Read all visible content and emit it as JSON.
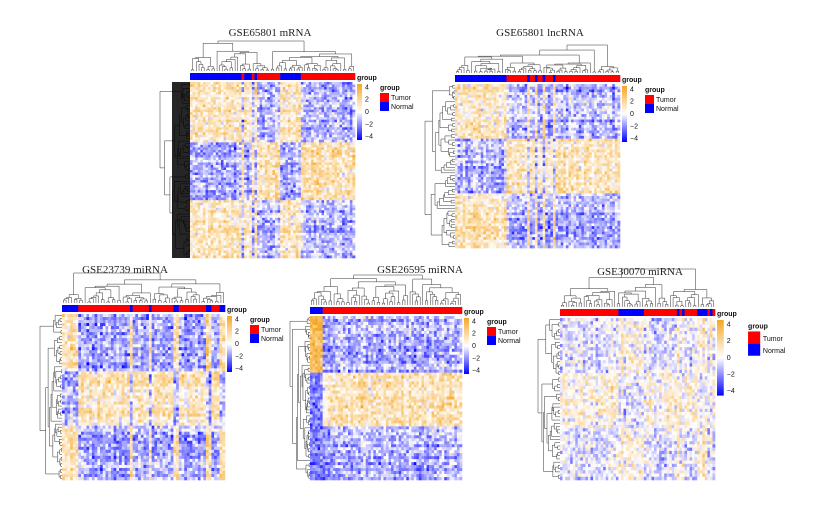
{
  "chart_data": [
    {
      "type": "heatmap",
      "title": "GSE65801 mRNA",
      "annotation_label": "group",
      "legend": {
        "title": "group",
        "entries": [
          {
            "label": "Tumor",
            "color": "#FF0000"
          },
          {
            "label": "Normal",
            "color": "#0000FF"
          }
        ]
      },
      "color_scale": {
        "ticks": [
          "4",
          "2",
          "0",
          "−2",
          "−4"
        ],
        "range": [
          -4,
          4
        ],
        "low": "#0000FF",
        "mid": "#FFFFFF",
        "high": "#F5A623"
      },
      "sample_group_runs": [
        [
          "Normal",
          20
        ],
        [
          "Tumor",
          1
        ],
        [
          "Normal",
          3
        ],
        [
          "Tumor",
          1
        ],
        [
          "Normal",
          1
        ],
        [
          "Tumor",
          9
        ],
        [
          "Normal",
          8
        ],
        [
          "Tumor",
          21
        ]
      ],
      "rows_dense": true
    },
    {
      "type": "heatmap",
      "title": "GSE65801 lncRNA",
      "annotation_label": "group",
      "legend": {
        "title": "group",
        "entries": [
          {
            "label": "Tumor",
            "color": "#FF0000"
          },
          {
            "label": "Normal",
            "color": "#0000FF"
          }
        ]
      },
      "color_scale": {
        "ticks": [
          "4",
          "2",
          "0",
          "−2",
          "−4"
        ],
        "range": [
          -4,
          4
        ],
        "low": "#0000FF",
        "mid": "#FFFFFF",
        "high": "#F5A623"
      },
      "sample_group_runs": [
        [
          "Normal",
          20
        ],
        [
          "Tumor",
          8
        ],
        [
          "Normal",
          1
        ],
        [
          "Tumor",
          2
        ],
        [
          "Normal",
          1
        ],
        [
          "Tumor",
          2
        ],
        [
          "Normal",
          1
        ],
        [
          "Tumor",
          3
        ],
        [
          "Normal",
          1
        ],
        [
          "Tumor",
          25
        ]
      ]
    },
    {
      "type": "heatmap",
      "title": "GSE23739 miRNA",
      "annotation_label": "group",
      "legend": {
        "title": "group",
        "entries": [
          {
            "label": "Tumor",
            "color": "#FF0000"
          },
          {
            "label": "Normal",
            "color": "#0000FF"
          }
        ]
      },
      "color_scale": {
        "ticks": [
          "4",
          "2",
          "0",
          "−2",
          "−4"
        ],
        "range": [
          -4,
          4
        ],
        "low": "#0000FF",
        "mid": "#FFFFFF",
        "high": "#F5A623"
      },
      "sample_group_runs": [
        [
          "Normal",
          6
        ],
        [
          "Tumor",
          19
        ],
        [
          "Normal",
          1
        ],
        [
          "Tumor",
          6
        ],
        [
          "Normal",
          1
        ],
        [
          "Tumor",
          8
        ],
        [
          "Normal",
          2
        ],
        [
          "Tumor",
          10
        ],
        [
          "Normal",
          2
        ],
        [
          "Tumor",
          3
        ],
        [
          "Normal",
          2
        ]
      ]
    },
    {
      "type": "heatmap",
      "title": "GSE26595 miRNA",
      "annotation_label": "group",
      "legend": {
        "title": "group",
        "entries": [
          {
            "label": "Tumor",
            "color": "#FF0000"
          },
          {
            "label": "Normal",
            "color": "#0000FF"
          }
        ]
      },
      "color_scale": {
        "ticks": [
          "4",
          "2",
          "0",
          "−2",
          "−4"
        ],
        "range": [
          -4,
          4
        ],
        "low": "#0000FF",
        "mid": "#FFFFFF",
        "high": "#F5A623"
      },
      "sample_group_runs": [
        [
          "Normal",
          5
        ],
        [
          "Tumor",
          55
        ]
      ]
    },
    {
      "type": "heatmap",
      "title": "GSE30070 miRNA",
      "annotation_label": "group",
      "legend": {
        "title": "group",
        "entries": [
          {
            "label": "Tumor",
            "color": "#FF0000"
          },
          {
            "label": "Normal",
            "color": "#0000FF"
          }
        ]
      },
      "color_scale": {
        "ticks": [
          "4",
          "2",
          "0",
          "−2",
          "−4"
        ],
        "range": [
          -4,
          4
        ],
        "low": "#0000FF",
        "mid": "#FFFFFF",
        "high": "#F5A623"
      },
      "sample_group_runs": [
        [
          "Tumor",
          23
        ],
        [
          "Normal",
          10
        ],
        [
          "Tumor",
          13
        ],
        [
          "Normal",
          1
        ],
        [
          "Tumor",
          1
        ],
        [
          "Normal",
          1
        ],
        [
          "Tumor",
          5
        ],
        [
          "Normal",
          4
        ],
        [
          "Tumor",
          1
        ],
        [
          "Normal",
          1
        ],
        [
          "Tumor",
          1
        ]
      ]
    }
  ]
}
